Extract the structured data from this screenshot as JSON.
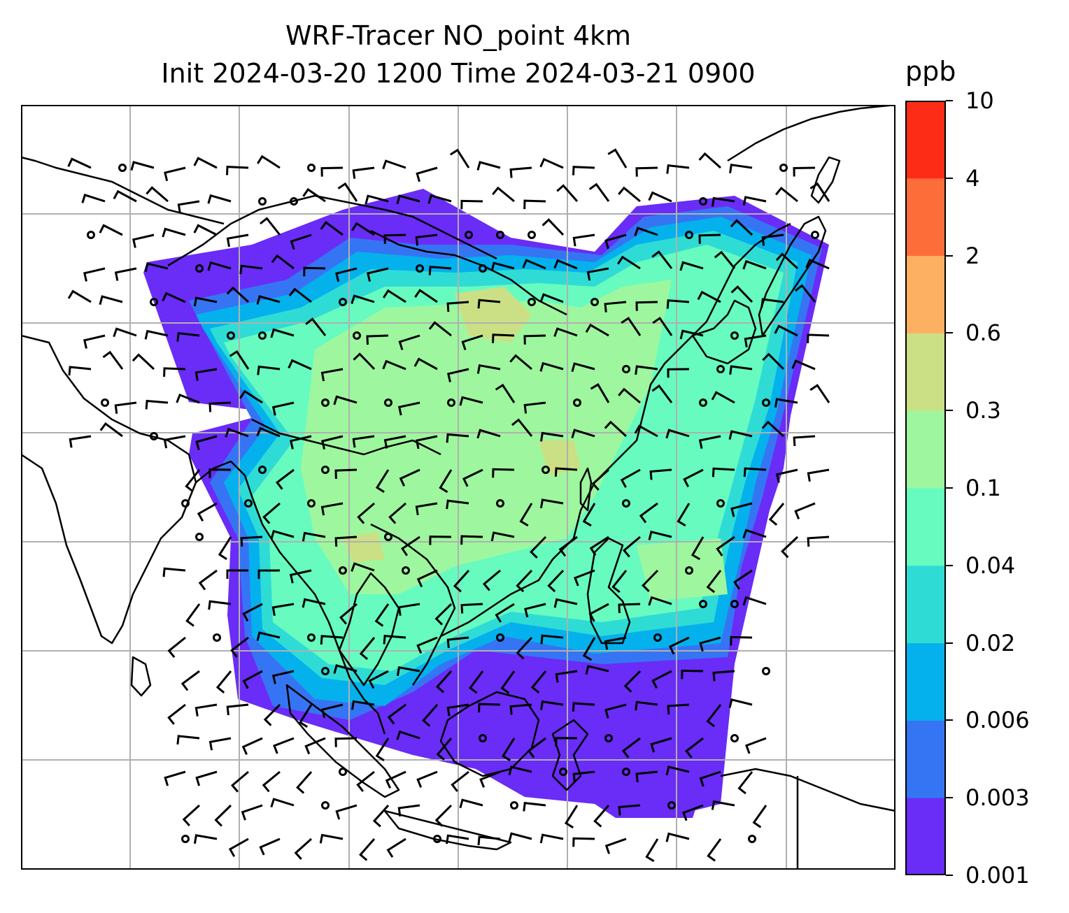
{
  "title": {
    "line1": "WRF-Tracer NO_point 4km",
    "line2": "Init 2024-03-20 1200 Time 2024-03-21 0900"
  },
  "colorbar": {
    "unit": "ppb",
    "levels": [
      "0.001",
      "0.003",
      "0.006",
      "0.02",
      "0.04",
      "0.1",
      "0.3",
      "0.6",
      "2",
      "4",
      "10"
    ],
    "colors": [
      "#6a2cf7",
      "#3575f4",
      "#04b1ed",
      "#2fdcd5",
      "#67fbc0",
      "#9ef79e",
      "#cbe085",
      "#fdb061",
      "#fd6d3a",
      "#fc2c17"
    ]
  },
  "map": {
    "gridline_color": "#b0b0b0",
    "coastline_color": "#000000"
  }
}
